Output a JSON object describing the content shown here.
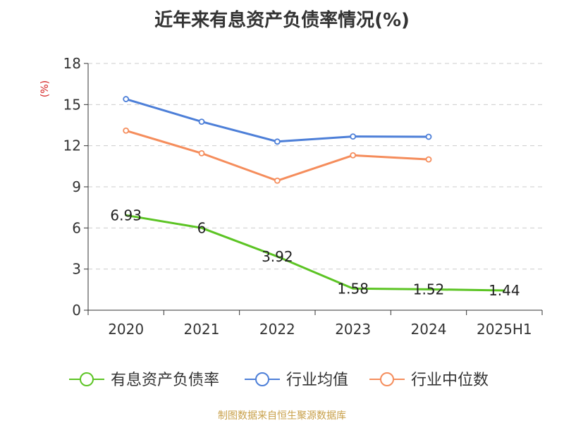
{
  "chart_data": {
    "type": "line",
    "title": "近年来有息资产负债率情况(%)",
    "ylabel": "(%)",
    "categories": [
      "2020",
      "2021",
      "2022",
      "2023",
      "2024",
      "2025H1"
    ],
    "y_ticks": [
      "0",
      "3",
      "6",
      "9",
      "12",
      "15",
      "18"
    ],
    "ylim": [
      0,
      18
    ],
    "grid": true,
    "legend_position": "bottom",
    "series": [
      {
        "name": "有息资产负债率",
        "color": "#5cc424",
        "values": [
          6.93,
          6,
          3.92,
          1.58,
          1.52,
          1.44
        ],
        "labels": [
          "6.93",
          "6",
          "3.92",
          "1.58",
          "1.52",
          "1.44"
        ]
      },
      {
        "name": "行业均值",
        "color": "#4d7fd8",
        "values": [
          15.4,
          13.75,
          12.3,
          12.67,
          12.65,
          null
        ]
      },
      {
        "name": "行业中位数",
        "color": "#f58d5c",
        "values": [
          13.1,
          11.45,
          9.45,
          11.3,
          11.0,
          null
        ]
      }
    ]
  },
  "source": "制图数据来自恒生聚源数据库"
}
